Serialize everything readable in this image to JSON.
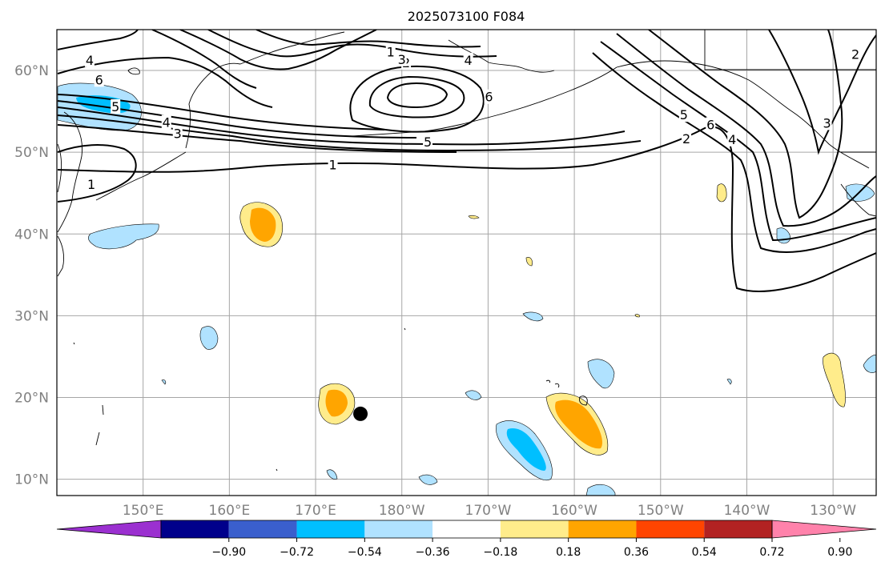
{
  "title": "2025073100 F084",
  "map": {
    "lon_range": [
      140,
      235
    ],
    "lat_range": [
      8,
      65
    ],
    "lon_ticks": [
      {
        "lon": 150,
        "label": "150°E"
      },
      {
        "lon": 160,
        "label": "160°E"
      },
      {
        "lon": 170,
        "label": "170°E"
      },
      {
        "lon": 180,
        "label": "180°W"
      },
      {
        "lon": 190,
        "label": "170°W"
      },
      {
        "lon": 200,
        "label": "160°W"
      },
      {
        "lon": 210,
        "label": "150°W"
      },
      {
        "lon": 220,
        "label": "140°W"
      },
      {
        "lon": 230,
        "label": "130°W"
      }
    ],
    "lat_ticks": [
      {
        "lat": 10,
        "label": "10°N"
      },
      {
        "lat": 20,
        "label": "20°N"
      },
      {
        "lat": 30,
        "label": "30°N"
      },
      {
        "lat": 40,
        "label": "40°N"
      },
      {
        "lat": 50,
        "label": "50°N"
      },
      {
        "lat": 60,
        "label": "60°N"
      }
    ],
    "grid": true,
    "marker": {
      "lon": 175.2,
      "lat": 18.0,
      "color": "#000000"
    },
    "contour_labels": [
      {
        "text": "4",
        "lon": 143.8,
        "lat": 61.2
      },
      {
        "text": "6",
        "lon": 144.9,
        "lat": 58.8
      },
      {
        "text": "5",
        "lon": 146.8,
        "lat": 55.5
      },
      {
        "text": "4",
        "lon": 152.7,
        "lat": 53.6
      },
      {
        "text": "3",
        "lon": 154.0,
        "lat": 52.2
      },
      {
        "text": "1",
        "lon": 144.0,
        "lat": 46.0
      },
      {
        "text": "1",
        "lon": 172.0,
        "lat": 48.4
      },
      {
        "text": "1",
        "lon": 178.7,
        "lat": 62.2
      },
      {
        "text": "2",
        "lon": 180.5,
        "lat": 60.9
      },
      {
        "text": "3",
        "lon": 180.0,
        "lat": 61.3
      },
      {
        "text": "4",
        "lon": 187.7,
        "lat": 61.2
      },
      {
        "text": "6",
        "lon": 190.1,
        "lat": 56.7
      },
      {
        "text": "5",
        "lon": 183.0,
        "lat": 51.2
      },
      {
        "text": "5",
        "lon": 212.7,
        "lat": 54.5
      },
      {
        "text": "6",
        "lon": 215.8,
        "lat": 53.3
      },
      {
        "text": "2",
        "lon": 213.0,
        "lat": 51.6
      },
      {
        "text": "4",
        "lon": 218.3,
        "lat": 51.5
      },
      {
        "text": "3",
        "lon": 229.3,
        "lat": 53.5
      },
      {
        "text": "2",
        "lon": 232.6,
        "lat": 61.9
      }
    ]
  },
  "colorbar": {
    "colors": [
      "#9b30d0",
      "#00008b",
      "#3a5fcd",
      "#00bfff",
      "#b0e2ff",
      "#ffffff",
      "#ffec8b",
      "#ffa500",
      "#ff4500",
      "#b22222",
      "#ff82ab"
    ],
    "tick_labels": [
      "−0.90",
      "−0.72",
      "−0.54",
      "−0.36",
      "−0.18",
      "0.18",
      "0.36",
      "0.54",
      "0.72",
      "0.90"
    ]
  }
}
